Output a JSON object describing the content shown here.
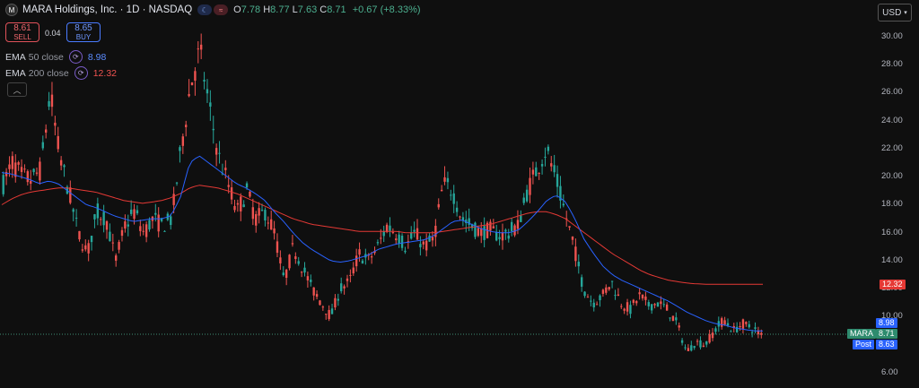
{
  "header": {
    "logo_text": "M",
    "title": "MARA Holdings, Inc. · 1D · NASDAQ",
    "badge1": "☾",
    "badge2": "≈",
    "open_key": "O",
    "open": "7.78",
    "high_key": "H",
    "high": "8.77",
    "low_key": "L",
    "low": "7.63",
    "close_key": "C",
    "close": "8.71",
    "change": "+0.67 (+8.33%)"
  },
  "trade": {
    "sell_price": "8.61",
    "sell_label": "SELL",
    "spread": "0.04",
    "buy_price": "8.65",
    "buy_label": "BUY"
  },
  "indicators": {
    "ema50_label": "EMA",
    "ema50_params": "50 close",
    "ema50_value": "8.98",
    "ema200_label": "EMA",
    "ema200_params": "200 close",
    "ema200_value": "12.32"
  },
  "currency": "USD",
  "colors": {
    "up": "#26a69a",
    "down": "#ef5350",
    "ema50": "#2962ff",
    "ema200": "#e53935",
    "background": "#0f0f0f"
  },
  "price_axis": {
    "ticks": [
      "30.00",
      "28.00",
      "26.00",
      "24.00",
      "22.00",
      "20.00",
      "18.00",
      "16.00",
      "14.00",
      "12.00",
      "10.00",
      "6.00"
    ],
    "ema200_tag": "12.32",
    "ema50_tag": "8.98",
    "mara_tag_label": "MARA",
    "mara_tag_value": "8.71",
    "post_tag_label": "Post",
    "post_tag_value": "8.63"
  },
  "chart_data": {
    "type": "candlestick",
    "ylim": [
      6.0,
      30.0
    ],
    "grid": false,
    "close_path": [
      19.5,
      21.0,
      20.0,
      19.8,
      20.5,
      26.0,
      21.5,
      19.0,
      16.0,
      14.5,
      17.5,
      17.0,
      14.0,
      16.5,
      17.5,
      16.0,
      17.0,
      16.5,
      17.0,
      22.0,
      26.5,
      29.0,
      25.0,
      21.5,
      19.5,
      17.5,
      19.0,
      17.0,
      17.5,
      16.0,
      12.5,
      15.0,
      13.5,
      12.0,
      11.0,
      10.0,
      12.0,
      12.5,
      14.5,
      14.0,
      15.0,
      16.5,
      16.0,
      15.0,
      16.0,
      15.0,
      15.5,
      19.5,
      19.0,
      17.0,
      16.5,
      16.0,
      16.2,
      15.8,
      16.0,
      16.5,
      19.0,
      20.5,
      22.0,
      20.0,
      17.5,
      15.0,
      12.0,
      11.0,
      11.5,
      12.5,
      11.0,
      10.5,
      11.5,
      10.8,
      11.0,
      10.5,
      9.5,
      7.5,
      8.2,
      8.0,
      9.0,
      9.8,
      9.0,
      9.5,
      9.2,
      8.7
    ],
    "ema50_path": [
      20.3,
      20.2,
      20.0,
      19.8,
      19.5,
      19.7,
      19.5,
      19.0,
      18.5,
      18.0,
      17.8,
      17.5,
      17.2,
      17.0,
      16.8,
      16.9,
      17.0,
      17.0,
      17.2,
      18.5,
      21.0,
      21.5,
      21.0,
      20.5,
      20.0,
      19.5,
      19.2,
      18.8,
      18.3,
      17.5,
      16.8,
      16.0,
      15.3,
      14.8,
      14.4,
      14.0,
      13.9,
      14.0,
      14.2,
      14.4,
      14.8,
      15.0,
      15.2,
      15.3,
      15.4,
      15.5,
      15.8,
      16.3,
      16.8,
      16.9,
      16.6,
      16.3,
      16.1,
      16.0,
      16.0,
      16.2,
      16.8,
      17.5,
      18.3,
      18.7,
      18.2,
      17.0,
      15.5,
      14.5,
      13.6,
      13.0,
      12.6,
      12.3,
      12.0,
      11.7,
      11.4,
      11.1,
      10.7,
      10.3,
      10.0,
      9.7,
      9.5,
      9.4,
      9.2,
      9.1,
      9.0,
      8.98
    ],
    "ema200_path": [
      18.0,
      18.4,
      18.7,
      18.9,
      19.0,
      19.1,
      19.2,
      19.2,
      19.1,
      19.0,
      18.9,
      18.7,
      18.5,
      18.3,
      18.2,
      18.1,
      18.2,
      18.3,
      18.5,
      18.8,
      19.2,
      19.4,
      19.3,
      19.2,
      19.0,
      18.8,
      18.5,
      18.2,
      17.9,
      17.6,
      17.3,
      17.0,
      16.8,
      16.6,
      16.5,
      16.4,
      16.3,
      16.2,
      16.1,
      16.1,
      16.1,
      16.1,
      16.1,
      16.0,
      16.0,
      16.0,
      16.0,
      16.1,
      16.2,
      16.3,
      16.4,
      16.5,
      16.6,
      16.8,
      17.0,
      17.2,
      17.4,
      17.5,
      17.5,
      17.3,
      17.0,
      16.5,
      16.0,
      15.5,
      15.0,
      14.5,
      14.1,
      13.7,
      13.3,
      13.0,
      12.8,
      12.6,
      12.5,
      12.4,
      12.35,
      12.32,
      12.32,
      12.32,
      12.32,
      12.32,
      12.32,
      12.32
    ]
  }
}
